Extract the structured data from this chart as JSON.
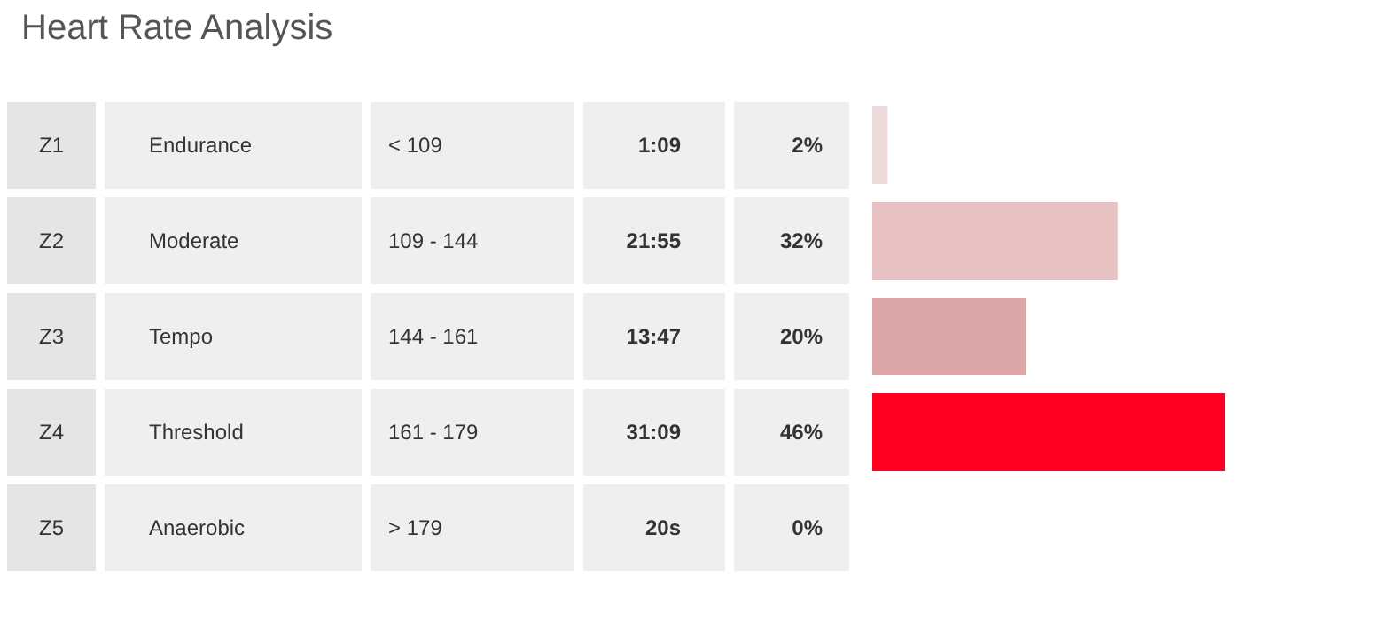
{
  "chart_data": {
    "type": "bar",
    "orientation": "horizontal",
    "title": "Heart Rate Analysis",
    "categories": [
      "Endurance",
      "Moderate",
      "Tempo",
      "Threshold",
      "Anaerobic"
    ],
    "values": [
      2,
      32,
      20,
      46,
      0
    ],
    "value_labels": [
      "2%",
      "32%",
      "20%",
      "46%",
      "0%"
    ],
    "colors": [
      "#ecd9da",
      "#e8c2c3",
      "#dba7a8",
      "#ff0022",
      "#c00018"
    ],
    "annotations": [
      "Z1",
      "< 109",
      "1:09",
      "Z2",
      "109 - 144",
      "21:55",
      "Z3",
      "144 - 161",
      "13:47",
      "Z4",
      "161 - 179",
      "31:09",
      "Z5",
      "> 179",
      "20s"
    ],
    "grid": false,
    "legend": false
  }
}
